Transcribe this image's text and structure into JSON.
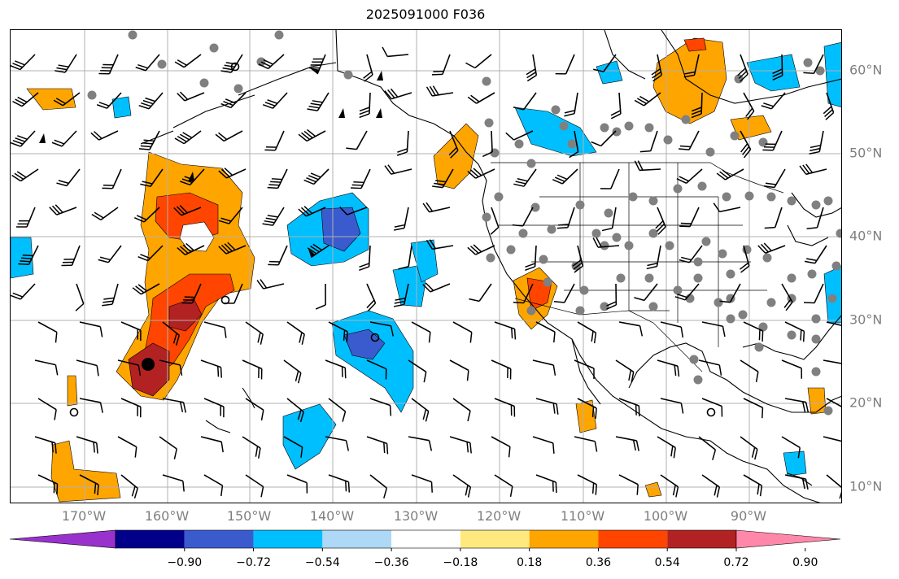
{
  "title": "2025091000 F036",
  "map": {
    "lon_range": [
      -180,
      -80
    ],
    "lat_range": [
      8,
      65
    ],
    "lon_labels": [
      "170°W",
      "160°W",
      "150°W",
      "140°W",
      "130°W",
      "120°W",
      "110°W",
      "100°W",
      "90°W"
    ],
    "lat_labels": [
      "10°N",
      "20°N",
      "30°N",
      "40°N",
      "50°N",
      "60°N"
    ],
    "land_color": "#ffffff",
    "coast_color": "#000000",
    "grid_color": "#b0b0b0"
  },
  "colorbar": {
    "tick_labels": [
      "−0.90",
      "−0.72",
      "−0.54",
      "−0.36",
      "−0.18",
      "0.18",
      "0.36",
      "0.54",
      "0.72",
      "0.90"
    ],
    "colors": [
      "#9932cc",
      "#00008b",
      "#3a5bcd",
      "#00bfff",
      "#add8f6",
      "#ffffff",
      "#ffe97f",
      "#ffa500",
      "#ff4500",
      "#b22222",
      "#ff88aa"
    ],
    "extend": "both"
  },
  "icons": {
    "wind_barb": "wind-barb-icon",
    "station_dot": "station-dot-icon",
    "storm_center": "storm-center-icon",
    "calm_circle": "calm-circle-icon"
  }
}
